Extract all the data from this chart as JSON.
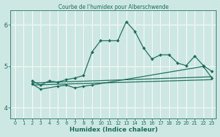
{
  "title": "Courbe de l'humidex pour Alberschwende",
  "xlabel": "Humidex (Indice chaleur)",
  "bg_color": "#cde8e2",
  "grid_color": "#ffffff",
  "line_color": "#1a6b5a",
  "xlim": [
    -0.5,
    23.5
  ],
  "ylim": [
    3.75,
    6.35
  ],
  "yticks": [
    4,
    5,
    6
  ],
  "xticks": [
    0,
    1,
    2,
    3,
    4,
    5,
    6,
    7,
    8,
    9,
    10,
    11,
    12,
    13,
    14,
    15,
    16,
    17,
    18,
    19,
    20,
    21,
    22,
    23
  ],
  "series": [
    {
      "x": [
        2,
        3,
        4,
        5,
        6,
        7,
        8,
        9,
        10,
        11,
        12,
        13,
        14,
        15,
        16,
        17,
        18,
        19,
        20,
        21,
        22,
        23
      ],
      "y": [
        4.65,
        4.55,
        4.65,
        4.62,
        4.68,
        4.72,
        4.78,
        5.35,
        5.62,
        5.62,
        5.62,
        6.08,
        5.85,
        5.45,
        5.18,
        5.28,
        5.28,
        5.08,
        5.02,
        5.25,
        5.02,
        4.88
      ]
    },
    {
      "x": [
        2,
        3,
        5,
        6,
        7,
        8,
        9,
        22,
        23
      ],
      "y": [
        4.58,
        4.45,
        4.52,
        4.55,
        4.48,
        4.52,
        4.55,
        5.0,
        4.72
      ]
    },
    {
      "x": [
        2,
        23
      ],
      "y": [
        4.6,
        4.75
      ]
    },
    {
      "x": [
        2,
        23
      ],
      "y": [
        4.55,
        4.68
      ]
    }
  ]
}
